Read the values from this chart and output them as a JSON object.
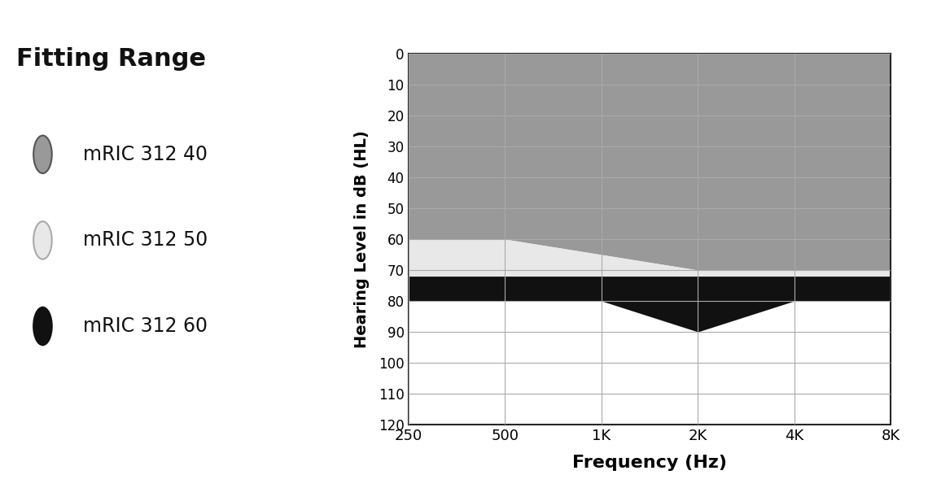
{
  "title": "Fitting Range",
  "xlabel": "Frequency (Hz)",
  "ylabel": "Hearing Level in dB (HL)",
  "x_labels": [
    "250",
    "500",
    "1K",
    "2K",
    "4K",
    "8K"
  ],
  "ylim_min": 0,
  "ylim_max": 120,
  "yticks": [
    0,
    10,
    20,
    30,
    40,
    50,
    60,
    70,
    80,
    90,
    100,
    110,
    120
  ],
  "background_color": "#ffffff",
  "legend_items": [
    {
      "label": "mRIC 312 40",
      "color": "#999999",
      "edge": "#555555"
    },
    {
      "label": "mRIC 312 50",
      "color": "#e8e8e8",
      "edge": "#aaaaaa"
    },
    {
      "label": "mRIC 312 60",
      "color": "#111111",
      "edge": "#111111"
    }
  ],
  "region_40_top": [
    0,
    0,
    0,
    0,
    0,
    0
  ],
  "region_40_bottom": [
    60,
    60,
    65,
    70,
    70,
    70
  ],
  "region_50_top": [
    60,
    60,
    65,
    70,
    70,
    70
  ],
  "region_50_bottom": [
    72,
    72,
    72,
    72,
    72,
    72
  ],
  "region_60_top": [
    72,
    72,
    72,
    72,
    72,
    72
  ],
  "region_60_bottom": [
    80,
    80,
    80,
    90,
    80,
    80
  ],
  "color_40": "#999999",
  "color_50": "#e8e8e8",
  "color_60": "#111111",
  "grid_color": "#aaaaaa",
  "grid_linewidth": 0.8,
  "spine_color": "#222222",
  "spine_linewidth": 1.5,
  "title_fontsize": 22,
  "legend_fontsize": 17,
  "tick_fontsize": 13,
  "xlabel_fontsize": 16,
  "ylabel_fontsize": 14
}
